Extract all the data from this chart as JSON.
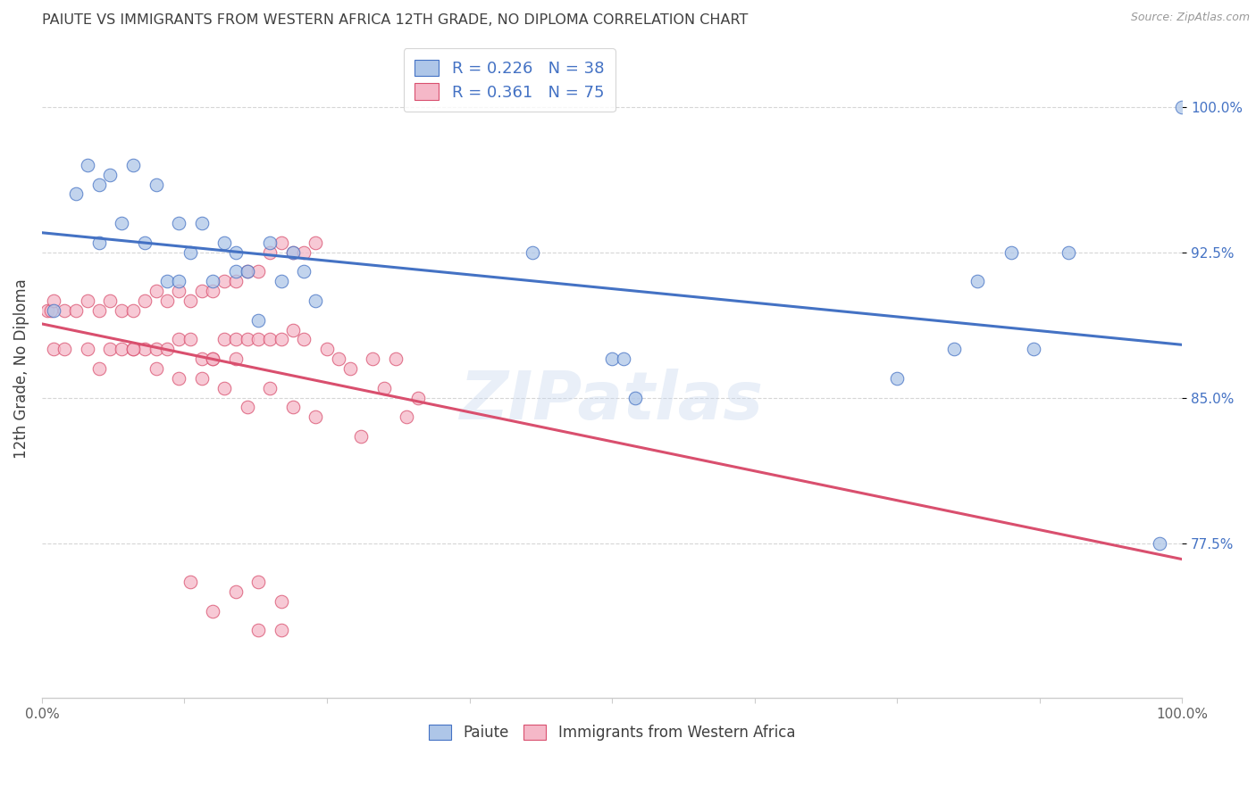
{
  "title": "PAIUTE VS IMMIGRANTS FROM WESTERN AFRICA 12TH GRADE, NO DIPLOMA CORRELATION CHART",
  "source": "Source: ZipAtlas.com",
  "ylabel": "12th Grade, No Diploma",
  "ytick_labels": [
    "77.5%",
    "85.0%",
    "92.5%",
    "100.0%"
  ],
  "ytick_values": [
    0.775,
    0.85,
    0.925,
    1.0
  ],
  "xlim": [
    0.0,
    1.0
  ],
  "ylim": [
    0.695,
    1.035
  ],
  "legend_r_blue": "0.226",
  "legend_n_blue": "38",
  "legend_r_pink": "0.361",
  "legend_n_pink": "75",
  "blue_color": "#aec6e8",
  "pink_color": "#f5b8c8",
  "blue_line_color": "#4472c4",
  "pink_line_color": "#d94f6e",
  "legend_text_color": "#4472c4",
  "title_color": "#404040",
  "source_color": "#999999",
  "background_color": "#ffffff",
  "grid_color": "#cccccc",
  "blue_scatter_x": [
    0.01,
    0.03,
    0.04,
    0.05,
    0.05,
    0.06,
    0.07,
    0.08,
    0.09,
    0.1,
    0.11,
    0.12,
    0.12,
    0.13,
    0.14,
    0.15,
    0.16,
    0.17,
    0.17,
    0.18,
    0.19,
    0.2,
    0.21,
    0.22,
    0.23,
    0.24,
    0.43,
    0.5,
    0.51,
    0.52,
    0.75,
    0.8,
    0.82,
    0.85,
    0.87,
    0.9,
    0.98,
    1.0
  ],
  "blue_scatter_y": [
    0.895,
    0.955,
    0.97,
    0.93,
    0.96,
    0.965,
    0.94,
    0.97,
    0.93,
    0.96,
    0.91,
    0.94,
    0.91,
    0.925,
    0.94,
    0.91,
    0.93,
    0.925,
    0.915,
    0.915,
    0.89,
    0.93,
    0.91,
    0.925,
    0.915,
    0.9,
    0.925,
    0.87,
    0.87,
    0.85,
    0.86,
    0.875,
    0.91,
    0.925,
    0.875,
    0.925,
    0.775,
    1.0
  ],
  "pink_scatter_x": [
    0.005,
    0.008,
    0.01,
    0.01,
    0.02,
    0.02,
    0.03,
    0.04,
    0.04,
    0.05,
    0.05,
    0.06,
    0.06,
    0.07,
    0.07,
    0.08,
    0.08,
    0.09,
    0.09,
    0.1,
    0.1,
    0.11,
    0.11,
    0.12,
    0.12,
    0.13,
    0.13,
    0.14,
    0.14,
    0.15,
    0.15,
    0.16,
    0.16,
    0.17,
    0.17,
    0.18,
    0.18,
    0.19,
    0.19,
    0.2,
    0.2,
    0.21,
    0.21,
    0.22,
    0.22,
    0.23,
    0.23,
    0.24,
    0.25,
    0.26,
    0.27,
    0.28,
    0.29,
    0.3,
    0.31,
    0.32,
    0.33,
    0.2,
    0.22,
    0.24,
    0.16,
    0.18,
    0.08,
    0.1,
    0.12,
    0.14,
    0.15,
    0.17,
    0.19,
    0.21,
    0.13,
    0.15,
    0.17,
    0.19,
    0.21
  ],
  "pink_scatter_y": [
    0.895,
    0.895,
    0.9,
    0.875,
    0.895,
    0.875,
    0.895,
    0.9,
    0.875,
    0.895,
    0.865,
    0.9,
    0.875,
    0.895,
    0.875,
    0.895,
    0.875,
    0.9,
    0.875,
    0.905,
    0.875,
    0.9,
    0.875,
    0.905,
    0.88,
    0.9,
    0.88,
    0.905,
    0.87,
    0.905,
    0.87,
    0.91,
    0.88,
    0.91,
    0.88,
    0.915,
    0.88,
    0.915,
    0.88,
    0.925,
    0.88,
    0.93,
    0.88,
    0.925,
    0.885,
    0.925,
    0.88,
    0.93,
    0.875,
    0.87,
    0.865,
    0.83,
    0.87,
    0.855,
    0.87,
    0.84,
    0.85,
    0.855,
    0.845,
    0.84,
    0.855,
    0.845,
    0.875,
    0.865,
    0.86,
    0.86,
    0.87,
    0.87,
    0.73,
    0.73,
    0.755,
    0.74,
    0.75,
    0.755,
    0.745
  ]
}
